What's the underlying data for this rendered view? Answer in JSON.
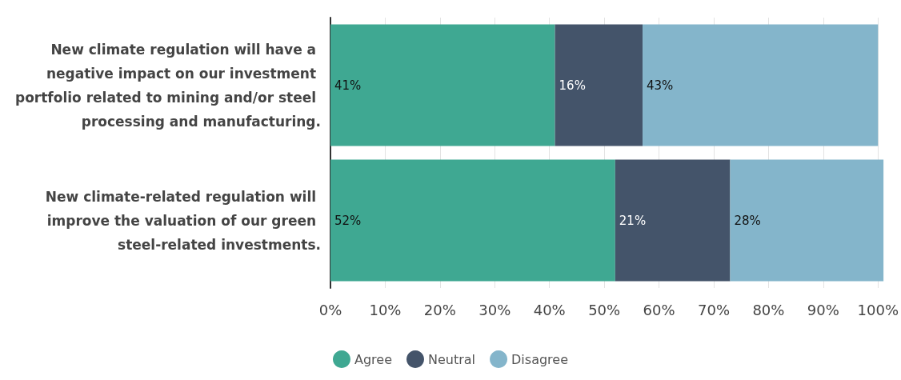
{
  "chart_data": {
    "type": "bar",
    "orientation": "horizontal",
    "stacked": true,
    "grid": "x",
    "legend": "bottom",
    "categories": [
      "New climate regulation will have a negative impact on our investment portfolio related to mining and/or steel processing and manufacturing.",
      "New climate-related regulation will improve the valuation of our green steel-related investments."
    ],
    "series": [
      {
        "name": "Agree",
        "color": "#3fa892",
        "values": [
          41,
          52
        ],
        "value_labels": [
          "41%",
          "52%"
        ]
      },
      {
        "name": "Neutral",
        "color": "#44546a",
        "values": [
          16,
          21
        ],
        "value_labels": [
          "16%",
          "21%"
        ]
      },
      {
        "name": "Disagree",
        "color": "#84b5cb",
        "values": [
          43,
          28
        ],
        "value_labels": [
          "43%",
          "28%"
        ]
      }
    ],
    "xlim": [
      0,
      101
    ],
    "xticks": [
      {
        "value": 0,
        "label": "0%"
      },
      {
        "value": 10,
        "label": "10%"
      },
      {
        "value": 20,
        "label": "20%"
      },
      {
        "value": 30,
        "label": "30%"
      },
      {
        "value": 40,
        "label": "40%"
      },
      {
        "value": 50,
        "label": "50%"
      },
      {
        "value": 60,
        "label": "60%"
      },
      {
        "value": 70,
        "label": "70%"
      },
      {
        "value": 80,
        "label": "80%"
      },
      {
        "value": 90,
        "label": "90%"
      },
      {
        "value": 100,
        "label": "100%"
      }
    ]
  }
}
